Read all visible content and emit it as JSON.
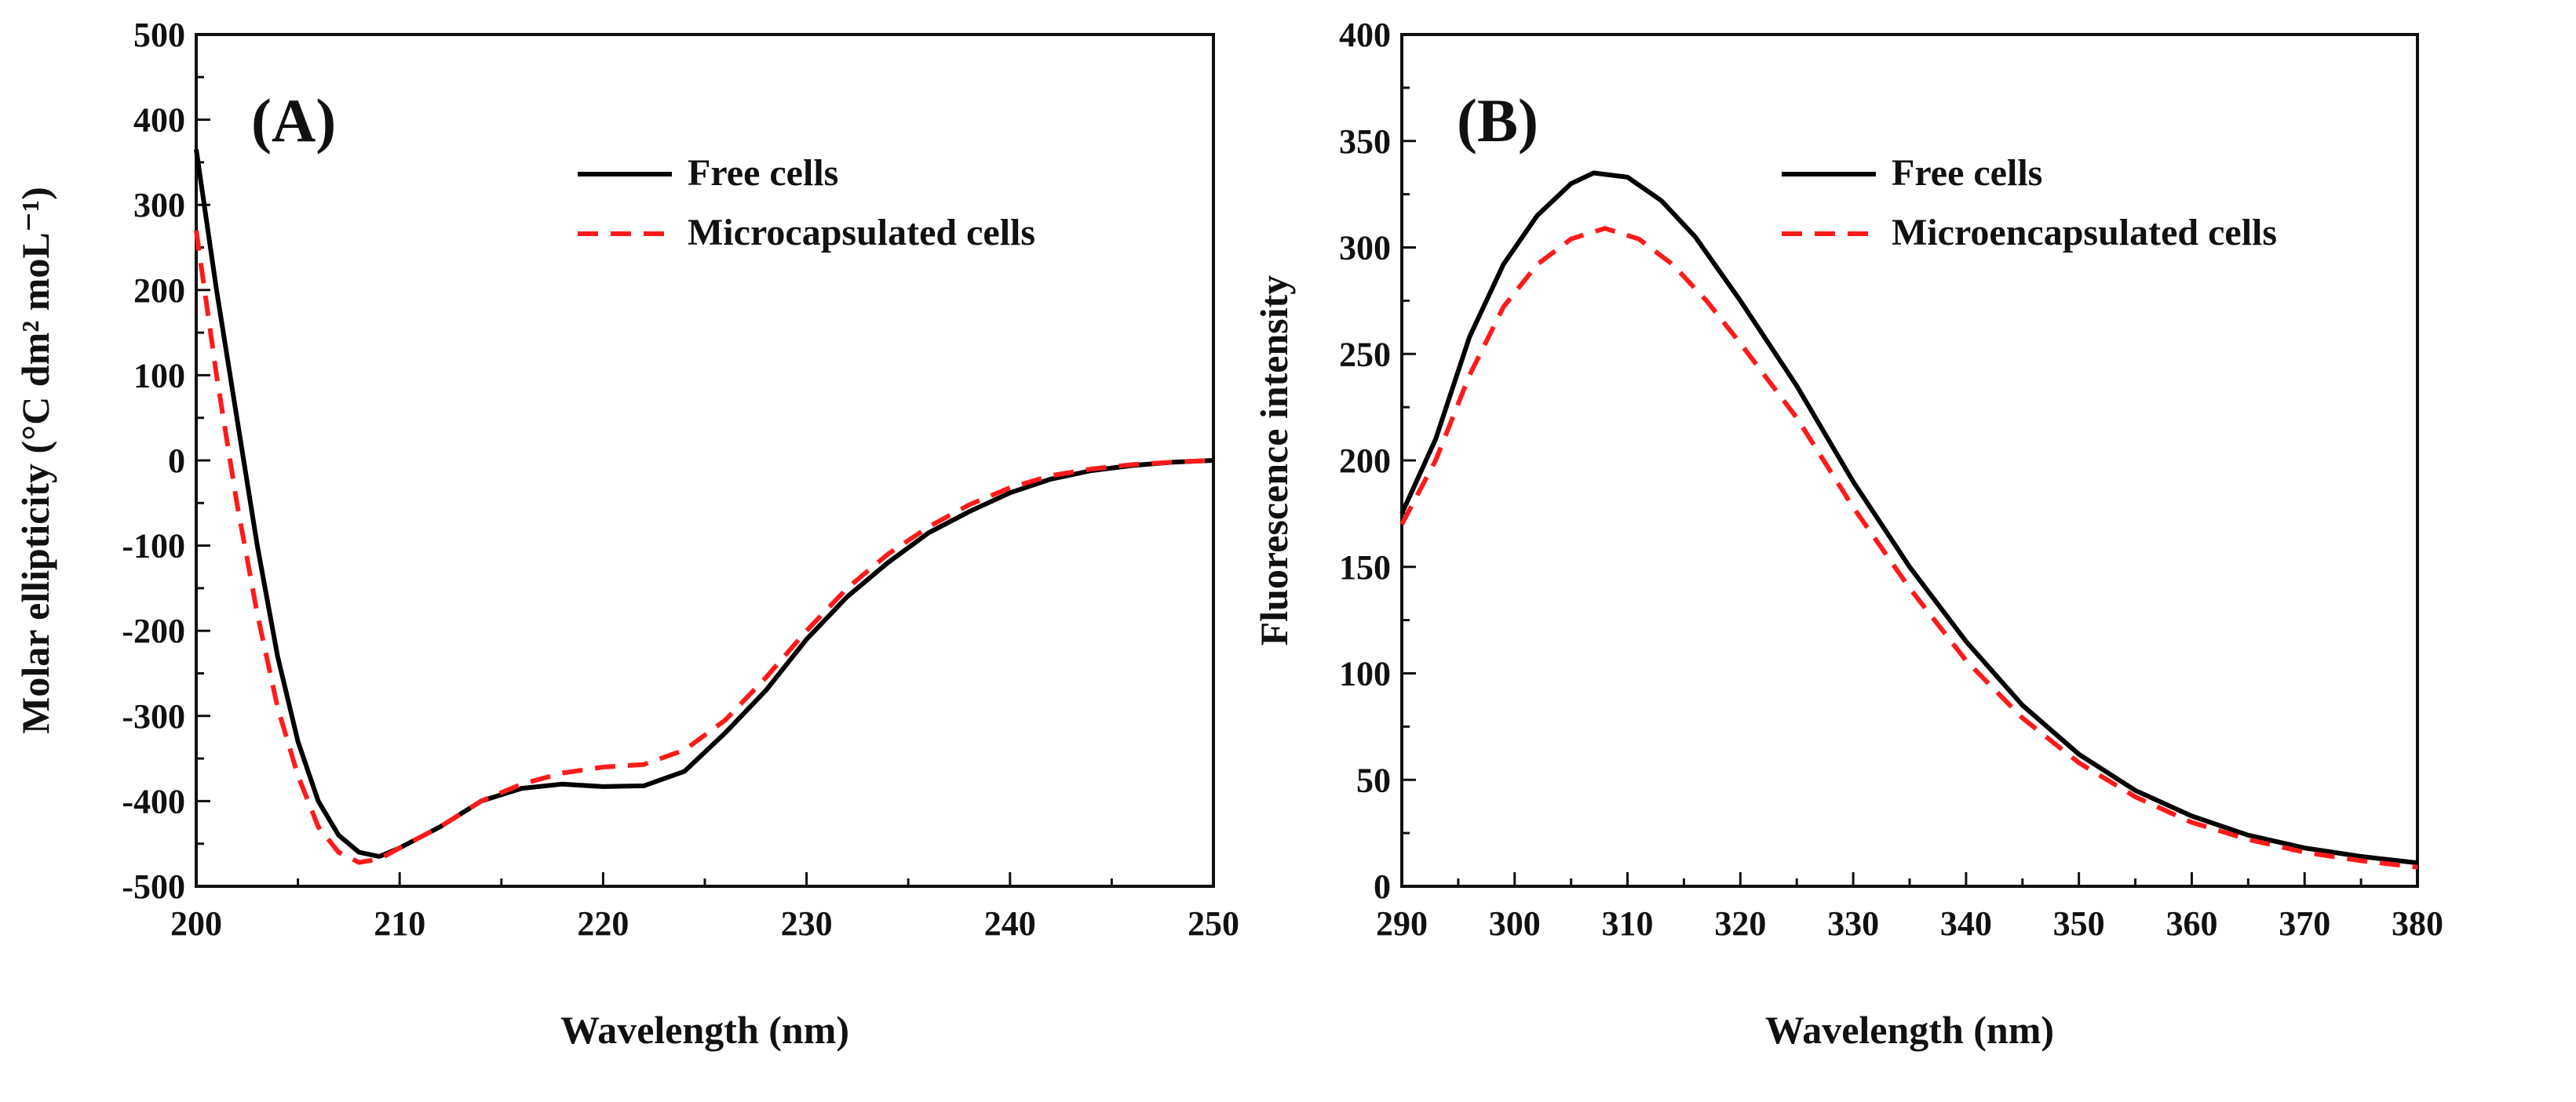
{
  "chart_data": [
    {
      "type": "line",
      "panel_label": "(A)",
      "xlabel": "Wavelength (nm)",
      "ylabel": "Molar ellipticity (°C dm² moL⁻¹)",
      "xlim": [
        200,
        250
      ],
      "ylim": [
        -500,
        500
      ],
      "xticks": [
        200,
        210,
        220,
        230,
        240,
        250
      ],
      "yticks": [
        -500,
        -400,
        -300,
        -200,
        -100,
        0,
        100,
        200,
        300,
        400,
        500
      ],
      "legend_position": "top-right",
      "series": [
        {
          "name": "Free cells",
          "color": "#000000",
          "style": "solid",
          "x": [
            200,
            201,
            202,
            203,
            204,
            205,
            206,
            207,
            208,
            209,
            210,
            212,
            214,
            216,
            218,
            220,
            222,
            224,
            226,
            228,
            230,
            232,
            234,
            236,
            238,
            240,
            242,
            244,
            246,
            248,
            250
          ],
          "y": [
            365,
            200,
            50,
            -100,
            -230,
            -330,
            -400,
            -440,
            -460,
            -465,
            -455,
            -430,
            -400,
            -385,
            -380,
            -383,
            -382,
            -365,
            -320,
            -270,
            -210,
            -160,
            -120,
            -85,
            -60,
            -38,
            -22,
            -12,
            -6,
            -2,
            0
          ]
        },
        {
          "name": "Microcapsulated cells",
          "color": "#ff1a1a",
          "style": "dashed",
          "x": [
            200,
            201,
            202,
            203,
            204,
            205,
            206,
            207,
            208,
            209,
            210,
            212,
            214,
            216,
            218,
            220,
            222,
            224,
            226,
            228,
            230,
            232,
            234,
            236,
            238,
            240,
            242,
            244,
            246,
            248,
            250
          ],
          "y": [
            270,
            100,
            -50,
            -180,
            -290,
            -370,
            -430,
            -460,
            -472,
            -468,
            -455,
            -430,
            -400,
            -380,
            -367,
            -360,
            -357,
            -340,
            -305,
            -255,
            -200,
            -150,
            -110,
            -78,
            -52,
            -32,
            -18,
            -10,
            -5,
            -2,
            0
          ]
        }
      ]
    },
    {
      "type": "line",
      "panel_label": "(B)",
      "xlabel": "Wavelength (nm)",
      "ylabel": "Fluorescence intensity",
      "xlim": [
        290,
        380
      ],
      "ylim": [
        0,
        400
      ],
      "xticks": [
        290,
        300,
        310,
        320,
        330,
        340,
        350,
        360,
        370,
        380
      ],
      "yticks": [
        0,
        50,
        100,
        150,
        200,
        250,
        300,
        350,
        400
      ],
      "legend_position": "top-right",
      "series": [
        {
          "name": "Free cells",
          "color": "#000000",
          "style": "solid",
          "x": [
            290,
            293,
            296,
            299,
            302,
            305,
            307,
            310,
            313,
            316,
            320,
            325,
            330,
            335,
            340,
            345,
            350,
            355,
            360,
            365,
            370,
            375,
            380
          ],
          "y": [
            175,
            210,
            258,
            292,
            315,
            330,
            335,
            333,
            322,
            305,
            275,
            235,
            190,
            150,
            115,
            85,
            62,
            45,
            33,
            24,
            18,
            14,
            11
          ]
        },
        {
          "name": "Microencapsulated cells",
          "color": "#ff1a1a",
          "style": "dashed",
          "x": [
            290,
            293,
            296,
            299,
            302,
            305,
            308,
            311,
            314,
            317,
            320,
            325,
            330,
            335,
            340,
            345,
            350,
            355,
            360,
            365,
            370,
            375,
            380
          ],
          "y": [
            170,
            200,
            240,
            272,
            292,
            304,
            309,
            304,
            292,
            275,
            255,
            220,
            178,
            140,
            106,
            79,
            58,
            42,
            30,
            22,
            16,
            12,
            9
          ]
        }
      ]
    }
  ]
}
